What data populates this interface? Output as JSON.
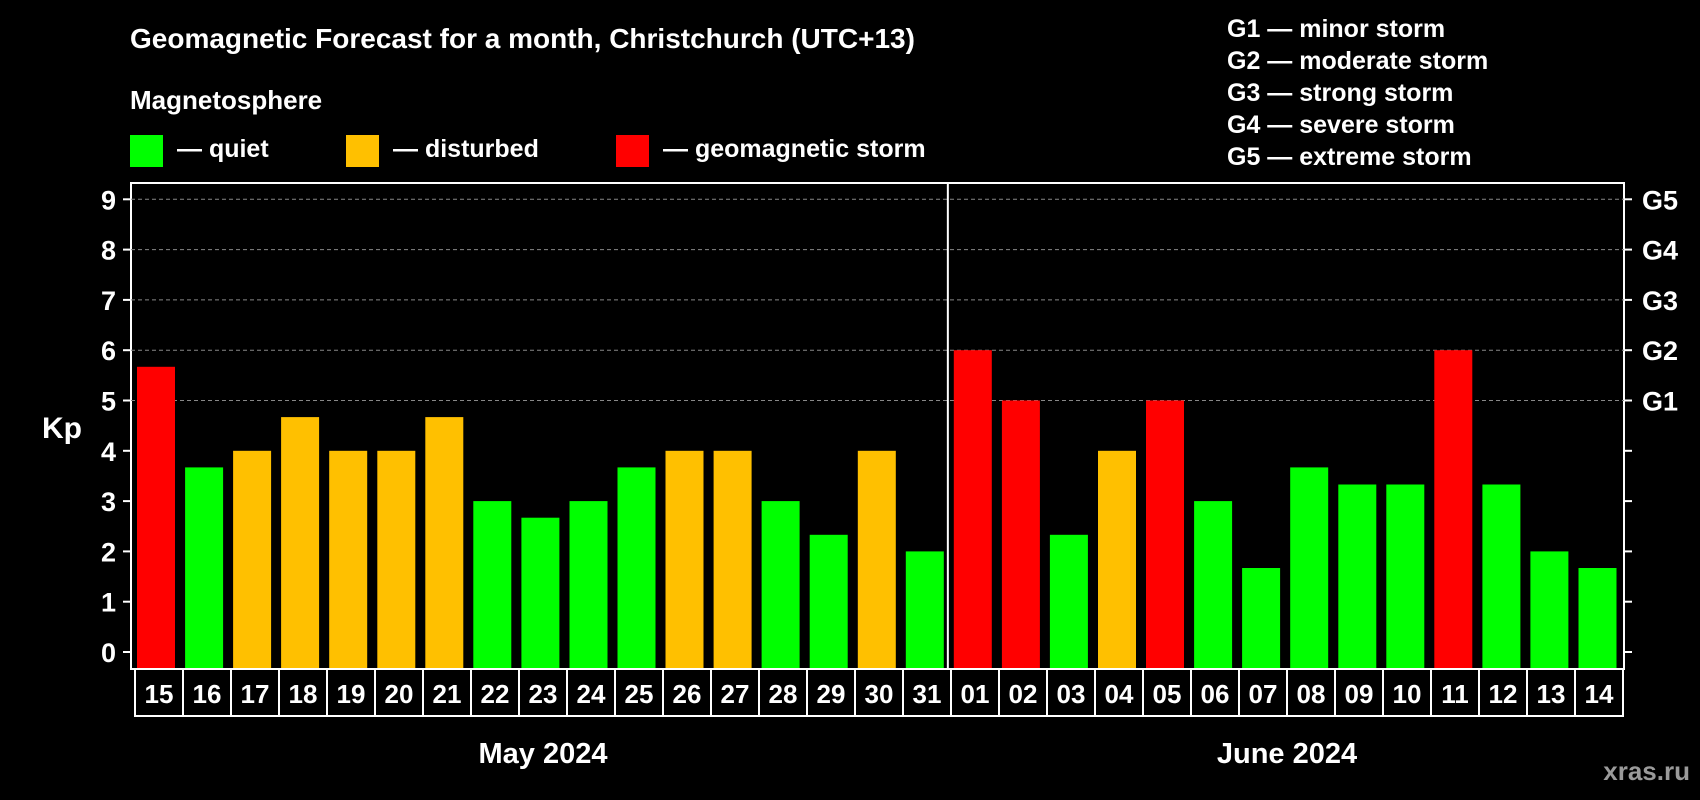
{
  "title": "Geomagnetic Forecast for a month, Christchurch (UTC+13)",
  "legend": {
    "heading": "Magnetosphere",
    "items": [
      {
        "label": "— quiet",
        "color": "#00ff00"
      },
      {
        "label": "— disturbed",
        "color": "#ffc000"
      },
      {
        "label": "— geomagnetic storm",
        "color": "#ff0000"
      }
    ]
  },
  "storm_scale": [
    "G1 — minor storm",
    "G2 — moderate storm",
    "G3 — strong storm",
    "G4 — severe storm",
    "G5 — extreme storm"
  ],
  "watermark": "xras.ru",
  "colors": {
    "quiet": "#00ff00",
    "disturbed": "#ffc000",
    "storm": "#ff0000",
    "background": "#000000",
    "grid": "#888888"
  },
  "chart_data": {
    "type": "bar",
    "ylabel": "Kp",
    "ylim": [
      0,
      9
    ],
    "yticks": [
      0,
      1,
      2,
      3,
      4,
      5,
      6,
      7,
      8,
      9
    ],
    "right_axis_labels": [
      {
        "kp": 5,
        "label": "G1"
      },
      {
        "kp": 6,
        "label": "G2"
      },
      {
        "kp": 7,
        "label": "G3"
      },
      {
        "kp": 8,
        "label": "G4"
      },
      {
        "kp": 9,
        "label": "G5"
      }
    ],
    "grid": "dashed at Kp 5 to 9",
    "months": [
      {
        "label": "May 2024",
        "days": [
          "15",
          "16",
          "17",
          "18",
          "19",
          "20",
          "21",
          "22",
          "23",
          "24",
          "25",
          "26",
          "27",
          "28",
          "29",
          "30",
          "31"
        ]
      },
      {
        "label": "June 2024",
        "days": [
          "01",
          "02",
          "03",
          "04",
          "05",
          "06",
          "07",
          "08",
          "09",
          "10",
          "11",
          "12",
          "13",
          "14"
        ]
      }
    ],
    "values": [
      5.67,
      3.67,
      4.0,
      4.67,
      4.0,
      4.0,
      4.67,
      3.0,
      2.67,
      3.0,
      3.67,
      4.0,
      4.0,
      3.0,
      2.33,
      4.0,
      2.0,
      6.0,
      5.0,
      2.33,
      4.0,
      5.0,
      3.0,
      1.67,
      3.67,
      3.33,
      3.33,
      6.0,
      3.33,
      2.0,
      1.67
    ],
    "status": [
      "storm",
      "quiet",
      "disturbed",
      "disturbed",
      "disturbed",
      "disturbed",
      "disturbed",
      "quiet",
      "quiet",
      "quiet",
      "quiet",
      "disturbed",
      "disturbed",
      "quiet",
      "quiet",
      "disturbed",
      "quiet",
      "storm",
      "storm",
      "quiet",
      "disturbed",
      "storm",
      "quiet",
      "quiet",
      "quiet",
      "quiet",
      "quiet",
      "storm",
      "quiet",
      "quiet",
      "quiet"
    ]
  }
}
